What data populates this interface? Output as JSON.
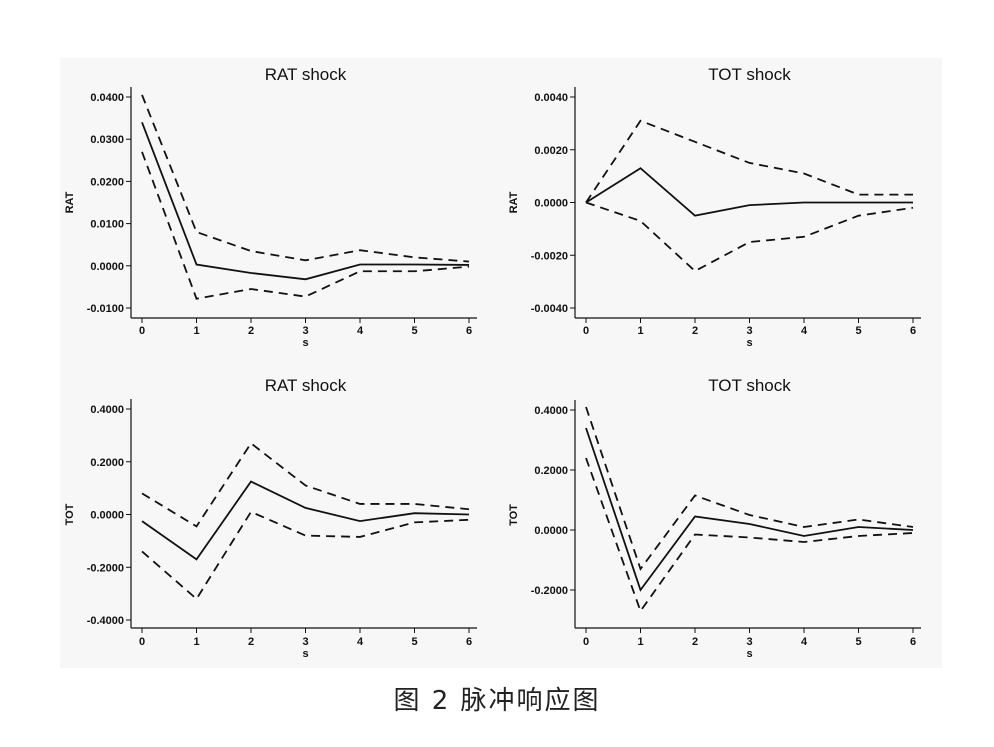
{
  "caption": "图 2    脉冲响应图",
  "chart_data": [
    {
      "type": "line",
      "title": "RAT shock",
      "xlabel": "s",
      "ylabel": "RAT",
      "x": [
        0,
        1,
        2,
        3,
        4,
        5,
        6
      ],
      "ylim": [
        -0.01,
        0.04
      ],
      "yticks": [
        "-0.0100",
        "0.0000",
        "0.0100",
        "0.0200",
        "0.0300",
        "0.0400"
      ],
      "series": [
        {
          "style": "solid",
          "values": [
            0.034,
            0.0003,
            -0.0017,
            -0.0032,
            0.0003,
            0.0003,
            0.0002
          ]
        },
        {
          "style": "dashed",
          "values": [
            0.0405,
            0.008,
            0.0035,
            0.0013,
            0.0037,
            0.002,
            0.001
          ]
        },
        {
          "style": "dashed",
          "values": [
            0.027,
            -0.0078,
            -0.0055,
            -0.0073,
            -0.0013,
            -0.0013,
            -0.0002
          ]
        }
      ]
    },
    {
      "type": "line",
      "title": "TOT shock",
      "xlabel": "s",
      "ylabel": "RAT",
      "x": [
        0,
        1,
        2,
        3,
        4,
        5,
        6
      ],
      "ylim": [
        -0.004,
        0.004
      ],
      "yticks": [
        "-0.0040",
        "-0.0020",
        "0.0000",
        "0.0020",
        "0.0040"
      ],
      "series": [
        {
          "style": "solid",
          "values": [
            0.0,
            0.0013,
            -0.0005,
            -0.0001,
            0.0,
            0.0,
            0.0
          ]
        },
        {
          "style": "dashed",
          "values": [
            0.0,
            0.0031,
            0.0023,
            0.0015,
            0.0011,
            0.0003,
            0.0003
          ]
        },
        {
          "style": "dashed",
          "values": [
            0.0,
            -0.0007,
            -0.0026,
            -0.0015,
            -0.0013,
            -0.0005,
            -0.0002
          ]
        }
      ]
    },
    {
      "type": "line",
      "title": "RAT shock",
      "xlabel": "s",
      "ylabel": "TOT",
      "x": [
        0,
        1,
        2,
        3,
        4,
        5,
        6
      ],
      "ylim": [
        -0.4,
        0.4
      ],
      "yticks": [
        "-0.4000",
        "-0.2000",
        "0.0000",
        "0.2000",
        "0.4000"
      ],
      "series": [
        {
          "style": "solid",
          "values": [
            -0.025,
            -0.17,
            0.125,
            0.025,
            -0.025,
            0.005,
            0.0
          ]
        },
        {
          "style": "dashed",
          "values": [
            0.08,
            -0.045,
            0.27,
            0.11,
            0.04,
            0.04,
            0.02
          ]
        },
        {
          "style": "dashed",
          "values": [
            -0.14,
            -0.32,
            0.01,
            -0.08,
            -0.085,
            -0.03,
            -0.02
          ]
        }
      ]
    },
    {
      "type": "line",
      "title": "TOT shock",
      "xlabel": "s",
      "ylabel": "TOT",
      "x": [
        0,
        1,
        2,
        3,
        4,
        5,
        6
      ],
      "ylim": [
        -0.3,
        0.4
      ],
      "yticks": [
        "-0.2000",
        "0.0000",
        "0.2000",
        "0.4000"
      ],
      "series": [
        {
          "style": "solid",
          "values": [
            0.34,
            -0.2,
            0.045,
            0.02,
            -0.02,
            0.01,
            0.0
          ]
        },
        {
          "style": "dashed",
          "values": [
            0.41,
            -0.13,
            0.115,
            0.05,
            0.01,
            0.035,
            0.01
          ]
        },
        {
          "style": "dashed",
          "values": [
            0.24,
            -0.27,
            -0.015,
            -0.025,
            -0.04,
            -0.02,
            -0.01
          ]
        }
      ]
    }
  ]
}
